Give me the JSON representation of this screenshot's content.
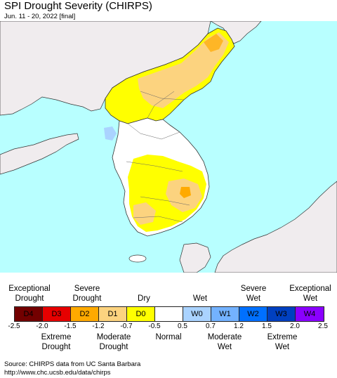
{
  "title": "SPI Drought Severity (CHIRPS)",
  "subtitle": "Jun. 11 - 20, 2022 [final]",
  "map": {
    "water_color": "#b8ffff",
    "foreign_land_color": "#f0ecee",
    "land_colors": {
      "normal": "#ffffff",
      "d0": "#ffff00",
      "d1": "#fcd37f",
      "d2": "#ffaa00",
      "w0": "#aad3ff"
    }
  },
  "legend": {
    "top_labels": [
      {
        "line1": "Exceptional",
        "line2": "Drought"
      },
      {
        "line1": "Severe",
        "line2": "Drought"
      },
      {
        "line1": "",
        "line2": "Dry"
      },
      {
        "line1": "",
        "line2": "Wet"
      },
      {
        "line1": "Severe",
        "line2": "Wet"
      },
      {
        "line1": "Exceptional",
        "line2": "Wet"
      }
    ],
    "classes": [
      {
        "label": "D4",
        "color": "#730000",
        "text_color": "#000000"
      },
      {
        "label": "D3",
        "color": "#e60000",
        "text_color": "#000000"
      },
      {
        "label": "D2",
        "color": "#ffaa00",
        "text_color": "#000000"
      },
      {
        "label": "D1",
        "color": "#fcd37f",
        "text_color": "#000000"
      },
      {
        "label": "D0",
        "color": "#ffff00",
        "text_color": "#000000"
      },
      {
        "label": "",
        "color": "#ffffff",
        "text_color": "#000000"
      },
      {
        "label": "W0",
        "color": "#aad3ff",
        "text_color": "#000000"
      },
      {
        "label": "W1",
        "color": "#73b2ff",
        "text_color": "#000000"
      },
      {
        "label": "W2",
        "color": "#0070ff",
        "text_color": "#000000"
      },
      {
        "label": "W3",
        "color": "#0040c0",
        "text_color": "#000000"
      },
      {
        "label": "W4",
        "color": "#8a00ff",
        "text_color": "#000000"
      }
    ],
    "ticks": [
      "-2.5",
      "-2.0",
      "-1.5",
      "-1.2",
      "-0.7",
      "-0.5",
      "0.5",
      "0.7",
      "1.2",
      "1.5",
      "2.0",
      "2.5"
    ],
    "bottom_labels": [
      {
        "line1": "Extreme",
        "line2": "Drought"
      },
      {
        "line1": "Moderate",
        "line2": "Drought"
      },
      {
        "line1": "Normal",
        "line2": ""
      },
      {
        "line1": "Moderate",
        "line2": "Wet"
      },
      {
        "line1": "Extreme",
        "line2": "Wet"
      }
    ]
  },
  "source": {
    "line1": "Source: CHIRPS data from UC Santa Barbara",
    "line2": "http://www.chc.ucsb.edu/data/chirps"
  }
}
